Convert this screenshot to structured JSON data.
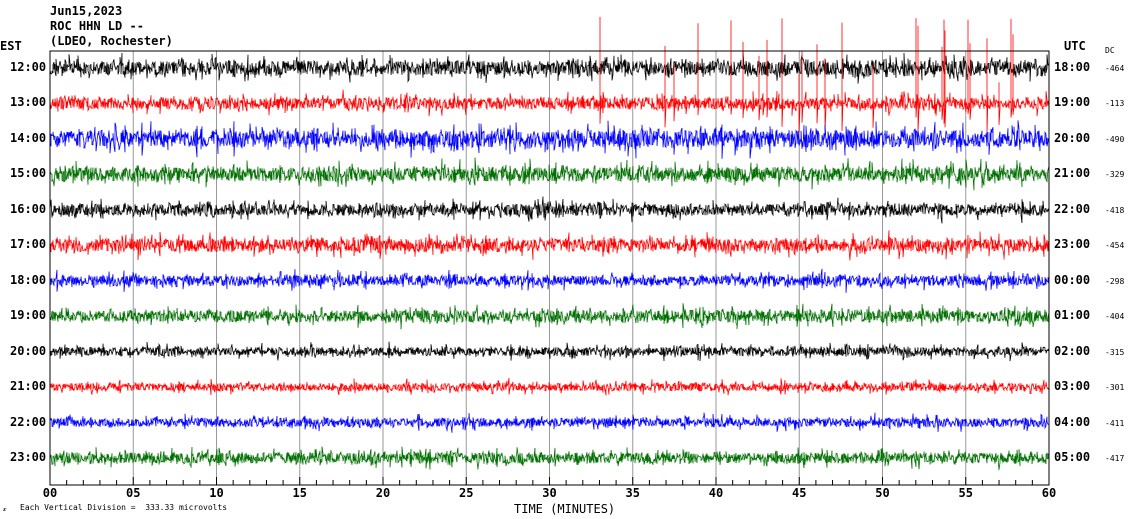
{
  "header": {
    "date": "Jun15,2023",
    "station": "ROC HHN LD --",
    "network": "(LDEO, Rochester)"
  },
  "left_axis_label": "EST",
  "right_axis_label": "UTC",
  "dc_label": "DC",
  "footer": {
    "mark": "𝓍",
    "scale_text": "Each Vertical Division =  333.33 microvolts"
  },
  "chart_data": {
    "type": "line",
    "title": "Jun15,2023 ROC HHN LD -- (LDEO, Rochester)",
    "xlabel": "TIME (MINUTES)",
    "xlim": [
      0,
      60
    ],
    "x_ticks": [
      "00",
      "05",
      "10",
      "15",
      "20",
      "25",
      "30",
      "35",
      "40",
      "45",
      "50",
      "55",
      "60"
    ],
    "grid": true,
    "trace_colors": [
      "#000000",
      "#ff0000",
      "#0000ff",
      "#007000"
    ],
    "rows": [
      {
        "est": "12:00",
        "utc": "18:00",
        "dc": "-464",
        "amp": 1.0
      },
      {
        "est": "13:00",
        "utc": "19:00",
        "dc": "-113",
        "amp": 0.8,
        "spikes_after_min": 33
      },
      {
        "est": "14:00",
        "utc": "20:00",
        "dc": "-490",
        "amp": 1.2
      },
      {
        "est": "15:00",
        "utc": "21:00",
        "dc": "-329",
        "amp": 1.0
      },
      {
        "est": "16:00",
        "utc": "22:00",
        "dc": "-418",
        "amp": 0.8
      },
      {
        "est": "17:00",
        "utc": "23:00",
        "dc": "-454",
        "amp": 0.9
      },
      {
        "est": "18:00",
        "utc": "00:00",
        "dc": "-298",
        "amp": 0.7
      },
      {
        "est": "19:00",
        "utc": "01:00",
        "dc": "-404",
        "amp": 0.8
      },
      {
        "est": "20:00",
        "utc": "02:00",
        "dc": "-315",
        "amp": 0.6
      },
      {
        "est": "21:00",
        "utc": "03:00",
        "dc": "-301",
        "amp": 0.55
      },
      {
        "est": "22:00",
        "utc": "04:00",
        "dc": "-411",
        "amp": 0.6
      },
      {
        "est": "23:00",
        "utc": "05:00",
        "dc": "-417",
        "amp": 0.75
      }
    ]
  }
}
